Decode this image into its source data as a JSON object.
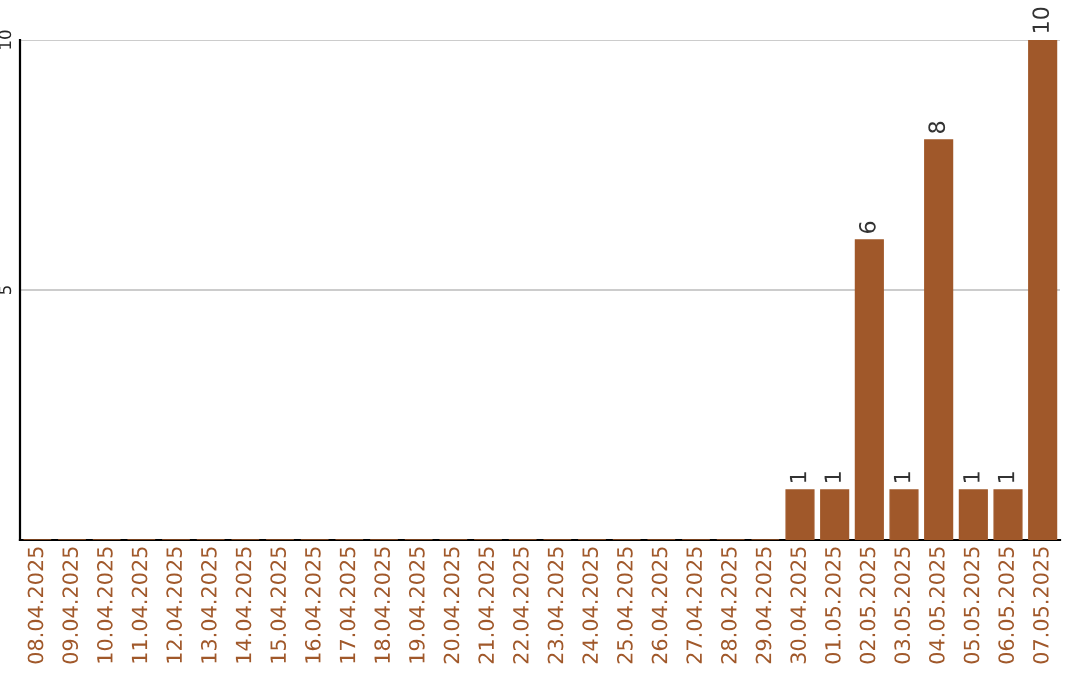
{
  "chart_data": {
    "type": "bar",
    "categories": [
      "08.04.2025",
      "09.04.2025",
      "10.04.2025",
      "11.04.2025",
      "12.04.2025",
      "13.04.2025",
      "14.04.2025",
      "15.04.2025",
      "16.04.2025",
      "17.04.2025",
      "18.04.2025",
      "19.04.2025",
      "20.04.2025",
      "21.04.2025",
      "22.04.2025",
      "23.04.2025",
      "24.04.2025",
      "25.04.2025",
      "26.04.2025",
      "27.04.2025",
      "28.04.2025",
      "29.04.2025",
      "30.04.2025",
      "01.05.2025",
      "02.05.2025",
      "03.05.2025",
      "04.05.2025",
      "05.05.2025",
      "06.05.2025",
      "07.05.2025"
    ],
    "values": [
      0,
      0,
      0,
      0,
      0,
      0,
      0,
      0,
      0,
      0,
      0,
      0,
      0,
      0,
      0,
      0,
      0,
      0,
      0,
      0,
      0,
      0,
      1,
      1,
      6,
      1,
      8,
      1,
      1,
      10
    ],
    "value_labels": [
      null,
      null,
      null,
      null,
      null,
      null,
      null,
      null,
      null,
      null,
      null,
      null,
      null,
      null,
      null,
      null,
      null,
      null,
      null,
      null,
      null,
      null,
      "1",
      "1",
      "6",
      "1",
      "8",
      "1",
      "1",
      "10"
    ],
    "color": "#a0582a",
    "ylim": [
      0,
      10
    ],
    "yticks": [
      5,
      10
    ],
    "grid": "y",
    "legend": false
  }
}
